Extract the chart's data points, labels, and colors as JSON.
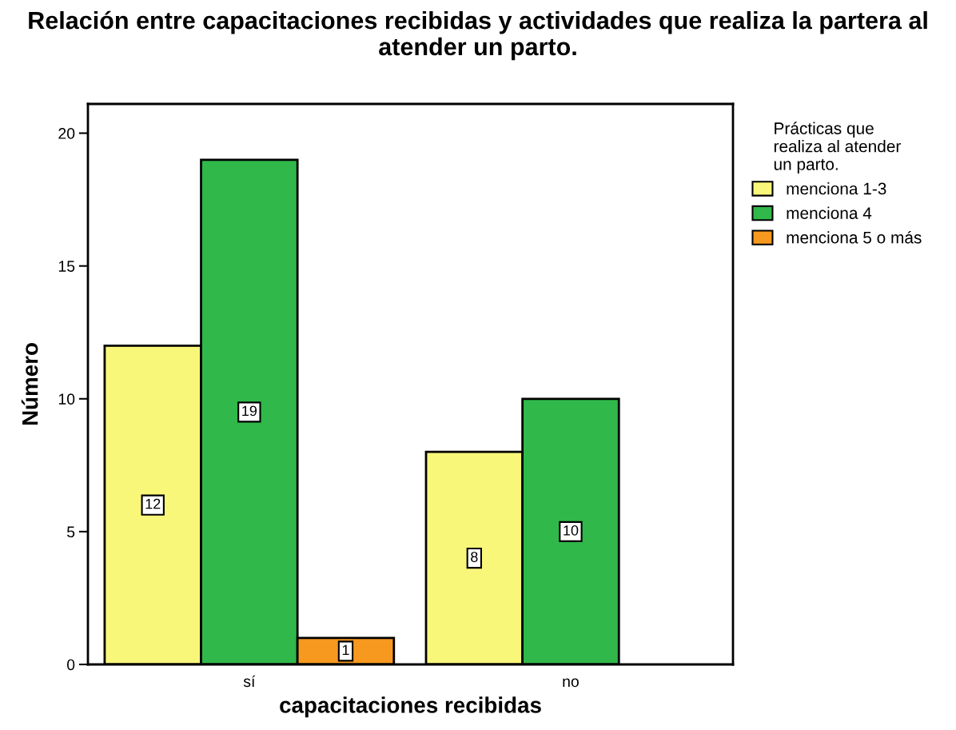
{
  "chart_data": {
    "type": "bar",
    "title": "Relación entre capacitaciones recibidas y actividades que realiza la partera al atender un parto.",
    "xlabel": "capacitaciones recibidas",
    "ylabel": "Número",
    "legend_title": "Prácticas que\nrealiza al atender\nun parto.",
    "categories": [
      "sí",
      "no"
    ],
    "series": [
      {
        "name": "menciona 1-3",
        "color": "#f9f77a",
        "values": [
          12,
          8
        ]
      },
      {
        "name": "menciona 4",
        "color": "#30b84a",
        "values": [
          19,
          10
        ]
      },
      {
        "name": "menciona 5 o más",
        "color": "#f7991f",
        "values": [
          1,
          null
        ]
      }
    ],
    "ylim": [
      0,
      21.1
    ],
    "yticks": [
      0,
      5,
      10,
      15,
      20
    ],
    "grid": false,
    "legend": "right",
    "data_labels": true
  }
}
